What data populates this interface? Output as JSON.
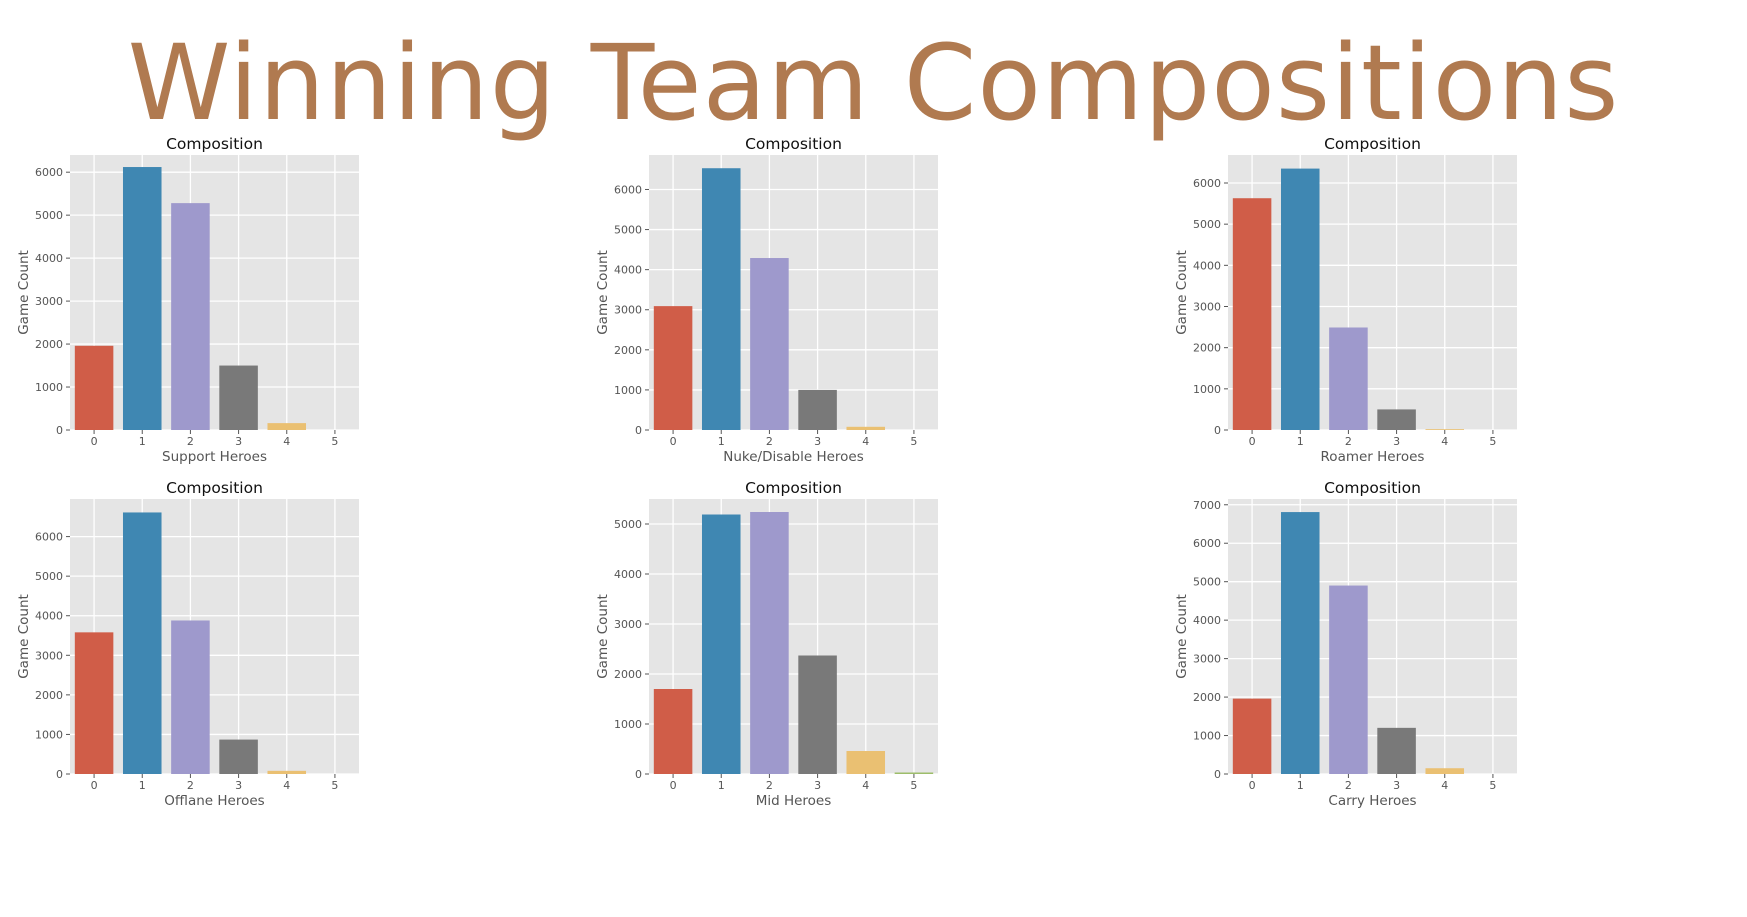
{
  "page": {
    "title": "Winning Team Compositions",
    "title_color": "#b07a50"
  },
  "palette": [
    "#d05d48",
    "#3f87b2",
    "#9e99cc",
    "#797979",
    "#eac072",
    "#9dbd6a"
  ],
  "chart_data": [
    {
      "type": "bar",
      "title": "Composition",
      "xlabel": "Support Heroes",
      "ylabel": "Game Count",
      "categories": [
        "0",
        "1",
        "2",
        "3",
        "4",
        "5"
      ],
      "values": [
        1960,
        6120,
        5280,
        1500,
        160,
        0
      ],
      "ylim": [
        0,
        6400
      ],
      "yticks": [
        0,
        1000,
        2000,
        3000,
        4000,
        5000,
        6000
      ],
      "grid": true
    },
    {
      "type": "bar",
      "title": "Composition",
      "xlabel": "Nuke/Disable Heroes",
      "ylabel": "Game Count",
      "categories": [
        "0",
        "1",
        "2",
        "3",
        "4",
        "5"
      ],
      "values": [
        3090,
        6530,
        4290,
        1000,
        80,
        0
      ],
      "ylim": [
        0,
        6860
      ],
      "yticks": [
        0,
        1000,
        2000,
        3000,
        4000,
        5000,
        6000
      ],
      "grid": true
    },
    {
      "type": "bar",
      "title": "Composition",
      "xlabel": "Roamer Heroes",
      "ylabel": "Game Count",
      "categories": [
        "0",
        "1",
        "2",
        "3",
        "4",
        "5"
      ],
      "values": [
        5630,
        6350,
        2490,
        500,
        20,
        0
      ],
      "ylim": [
        0,
        6680
      ],
      "yticks": [
        0,
        1000,
        2000,
        3000,
        4000,
        5000,
        6000
      ],
      "grid": true
    },
    {
      "type": "bar",
      "title": "Composition",
      "xlabel": "Offlane Heroes",
      "ylabel": "Game Count",
      "categories": [
        "0",
        "1",
        "2",
        "3",
        "4",
        "5"
      ],
      "values": [
        3580,
        6610,
        3880,
        870,
        80,
        0
      ],
      "ylim": [
        0,
        6950
      ],
      "yticks": [
        0,
        1000,
        2000,
        3000,
        4000,
        5000,
        6000
      ],
      "grid": true
    },
    {
      "type": "bar",
      "title": "Composition",
      "xlabel": "Mid Heroes",
      "ylabel": "Game Count",
      "categories": [
        "0",
        "1",
        "2",
        "3",
        "4",
        "5"
      ],
      "values": [
        1700,
        5190,
        5240,
        2370,
        460,
        30
      ],
      "ylim": [
        0,
        5500
      ],
      "yticks": [
        0,
        1000,
        2000,
        3000,
        4000,
        5000
      ],
      "grid": true
    },
    {
      "type": "bar",
      "title": "Composition",
      "xlabel": "Carry Heroes",
      "ylabel": "Game Count",
      "categories": [
        "0",
        "1",
        "2",
        "3",
        "4",
        "5"
      ],
      "values": [
        1960,
        6810,
        4900,
        1200,
        150,
        0
      ],
      "ylim": [
        0,
        7150
      ],
      "yticks": [
        0,
        1000,
        2000,
        3000,
        4000,
        5000,
        6000,
        7000
      ],
      "grid": true
    }
  ]
}
